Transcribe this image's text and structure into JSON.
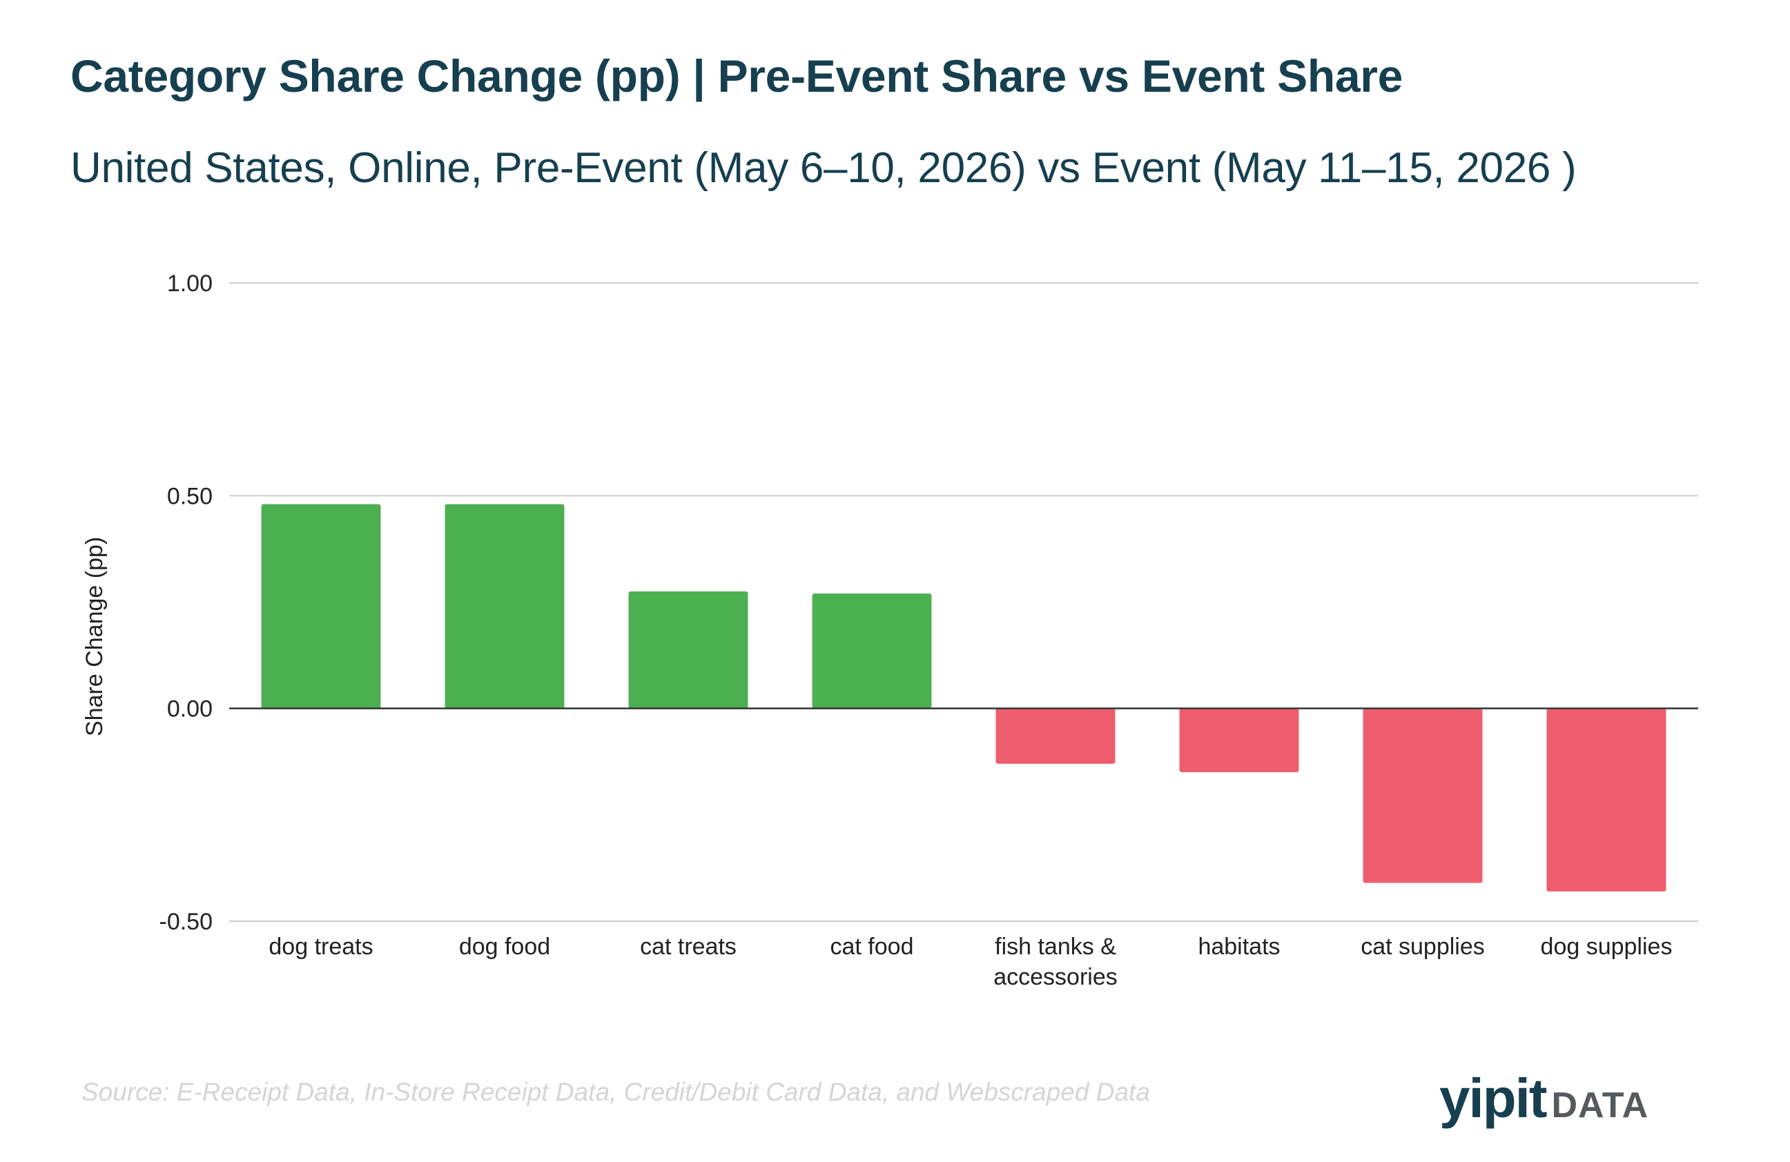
{
  "header": {
    "title": "Category Share Change (pp) | Pre-Event Share vs Event Share",
    "subtitle": "United States, Online, Pre-Event (May 6–10, 2026) vs Event (May 11–15, 2026 )"
  },
  "chart_data": {
    "type": "bar",
    "categories": [
      [
        "dog treats"
      ],
      [
        "dog food"
      ],
      [
        "cat treats"
      ],
      [
        "cat food"
      ],
      [
        "fish tanks &",
        "accessories"
      ],
      [
        "habitats"
      ],
      [
        "cat supplies"
      ],
      [
        "dog supplies"
      ]
    ],
    "values": [
      0.48,
      0.48,
      0.275,
      0.27,
      -0.13,
      -0.15,
      -0.41,
      -0.43
    ],
    "ylabel": "Share Change (pp)",
    "xlabel": "",
    "ylim": [
      -0.5,
      1.0
    ],
    "yticks": [
      "1.00",
      "0.50",
      "0.00",
      "-0.50"
    ],
    "ytick_values": [
      1.0,
      0.5,
      0.0,
      -0.5
    ],
    "grid": true,
    "colors": {
      "positive": "#4caf50",
      "negative": "#ee5e6e",
      "gridline": "#cccccc",
      "baseline": "#333333"
    }
  },
  "footer": {
    "source": "Source: E-Receipt Data, In-Store Receipt Data, Credit/Debit Card Data, and Webscraped Data",
    "logo_main": "yipit",
    "logo_suffix": "DATA"
  }
}
